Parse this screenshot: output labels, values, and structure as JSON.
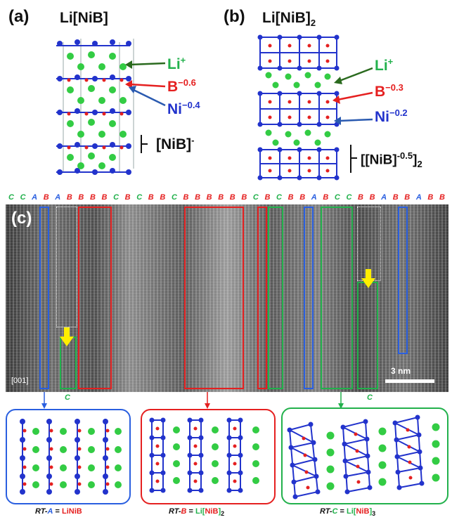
{
  "panel_a": {
    "label": "(a)",
    "title": "Li[NiB]",
    "li": {
      "text": "Li",
      "sup": "+"
    },
    "b": {
      "text": "B",
      "sup": "−0.6"
    },
    "ni": {
      "text": "Ni",
      "sup": "−0.4"
    },
    "unit": {
      "text": "[NiB]",
      "sup": "-"
    }
  },
  "panel_b": {
    "label": "(b)",
    "title": {
      "text": "Li[NiB]",
      "sub": "2"
    },
    "li": {
      "text": "Li",
      "sup": "+"
    },
    "b": {
      "text": "B",
      "sup": "−0.3"
    },
    "ni": {
      "text": "Ni",
      "sup": "−0.2"
    },
    "unit": {
      "text": "[[NiB]",
      "sup": "-0.5",
      "close": "]",
      "sub": "2"
    }
  },
  "panel_c": {
    "label": "(c)",
    "zone_axis": "[001]",
    "scale_bar": "3 nm",
    "sequence": [
      {
        "t": "C",
        "c": "#22b14c"
      },
      {
        "t": "C",
        "c": "#22b14c"
      },
      {
        "t": "A",
        "c": "#2a5fe0"
      },
      {
        "t": "B",
        "c": "#e52020"
      },
      {
        "t": "A",
        "c": "#2a5fe0"
      },
      {
        "t": "B",
        "c": "#e52020"
      },
      {
        "t": "B",
        "c": "#e52020"
      },
      {
        "t": "B",
        "c": "#e52020"
      },
      {
        "t": "B",
        "c": "#e52020"
      },
      {
        "t": "C",
        "c": "#22b14c"
      },
      {
        "t": "B",
        "c": "#e52020"
      },
      {
        "t": "C",
        "c": "#22b14c"
      },
      {
        "t": "B",
        "c": "#e52020"
      },
      {
        "t": "B",
        "c": "#e52020"
      },
      {
        "t": "C",
        "c": "#22b14c"
      },
      {
        "t": "B",
        "c": "#e52020"
      },
      {
        "t": "B",
        "c": "#e52020"
      },
      {
        "t": "B",
        "c": "#e52020"
      },
      {
        "t": "B",
        "c": "#e52020"
      },
      {
        "t": "B",
        "c": "#e52020"
      },
      {
        "t": "B",
        "c": "#e52020"
      },
      {
        "t": "C",
        "c": "#22b14c"
      },
      {
        "t": "B",
        "c": "#e52020"
      },
      {
        "t": "C",
        "c": "#22b14c"
      },
      {
        "t": "B",
        "c": "#e52020"
      },
      {
        "t": "B",
        "c": "#e52020"
      },
      {
        "t": "A",
        "c": "#2a5fe0"
      },
      {
        "t": "B",
        "c": "#e52020"
      },
      {
        "t": "C",
        "c": "#22b14c"
      },
      {
        "t": "C",
        "c": "#22b14c"
      },
      {
        "t": "B",
        "c": "#e52020"
      },
      {
        "t": "B",
        "c": "#e52020"
      },
      {
        "t": "A",
        "c": "#2a5fe0"
      },
      {
        "t": "B",
        "c": "#e52020"
      },
      {
        "t": "B",
        "c": "#e52020"
      },
      {
        "t": "A",
        "c": "#2a5fe0"
      },
      {
        "t": "B",
        "c": "#e52020"
      },
      {
        "t": "B",
        "c": "#e52020"
      }
    ],
    "below_labels": [
      "C",
      "C"
    ]
  },
  "bottom": {
    "rt_a": {
      "prefix": "RT-",
      "letter": "A",
      "eq": " = ",
      "formula": "LiNiB"
    },
    "rt_b": {
      "prefix": "RT-",
      "letter": "B",
      "eq": " = ",
      "li": "Li[",
      "nib": "NiB",
      "close": "]",
      "sub": "2"
    },
    "rt_c": {
      "prefix": "RT-",
      "letter": "C",
      "eq": " = ",
      "li": "Li[",
      "nib": "NiB",
      "close": "]",
      "sub": "3"
    }
  },
  "colors": {
    "li": "#22b14c",
    "b": "#e52020",
    "ni": "#2233cc",
    "box_a": "#2a5fe0",
    "box_b": "#e52020",
    "box_c": "#22b14c",
    "arrow": "#ffee00"
  }
}
